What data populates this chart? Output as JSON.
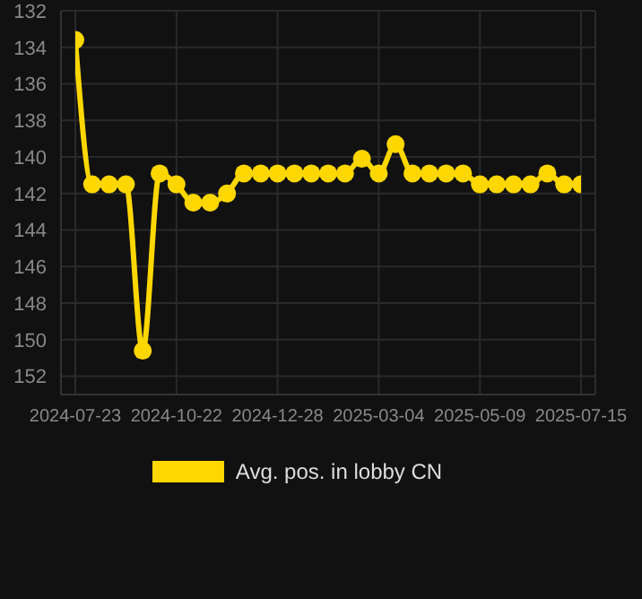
{
  "chart_data": {
    "type": "line",
    "categories": [
      "2024-07-23",
      null,
      null,
      null,
      null,
      null,
      "2024-10-22",
      null,
      null,
      null,
      null,
      null,
      "2024-12-28",
      null,
      null,
      null,
      null,
      null,
      "2025-03-04",
      null,
      null,
      null,
      null,
      null,
      "2025-05-09",
      null,
      null,
      null,
      null,
      null,
      "2025-07-15"
    ],
    "series": [
      {
        "name": "Avg. pos. in lobby CN",
        "color": "#ffd700",
        "values": [
          133.6,
          141.5,
          141.5,
          141.5,
          150.6,
          140.9,
          141.5,
          142.5,
          142.5,
          142.0,
          140.9,
          140.9,
          140.9,
          140.9,
          140.9,
          140.9,
          140.9,
          140.1,
          140.9,
          139.3,
          140.9,
          140.9,
          140.9,
          140.9,
          141.5,
          141.5,
          141.5,
          141.5,
          140.9,
          141.5,
          141.5
        ]
      }
    ],
    "ylim": [
      153,
      132
    ],
    "yticks": [
      132,
      134,
      136,
      138,
      140,
      142,
      144,
      146,
      148,
      150,
      152
    ],
    "grid": true,
    "legend": "bottom",
    "marker": "circle",
    "line_style": "solid"
  }
}
